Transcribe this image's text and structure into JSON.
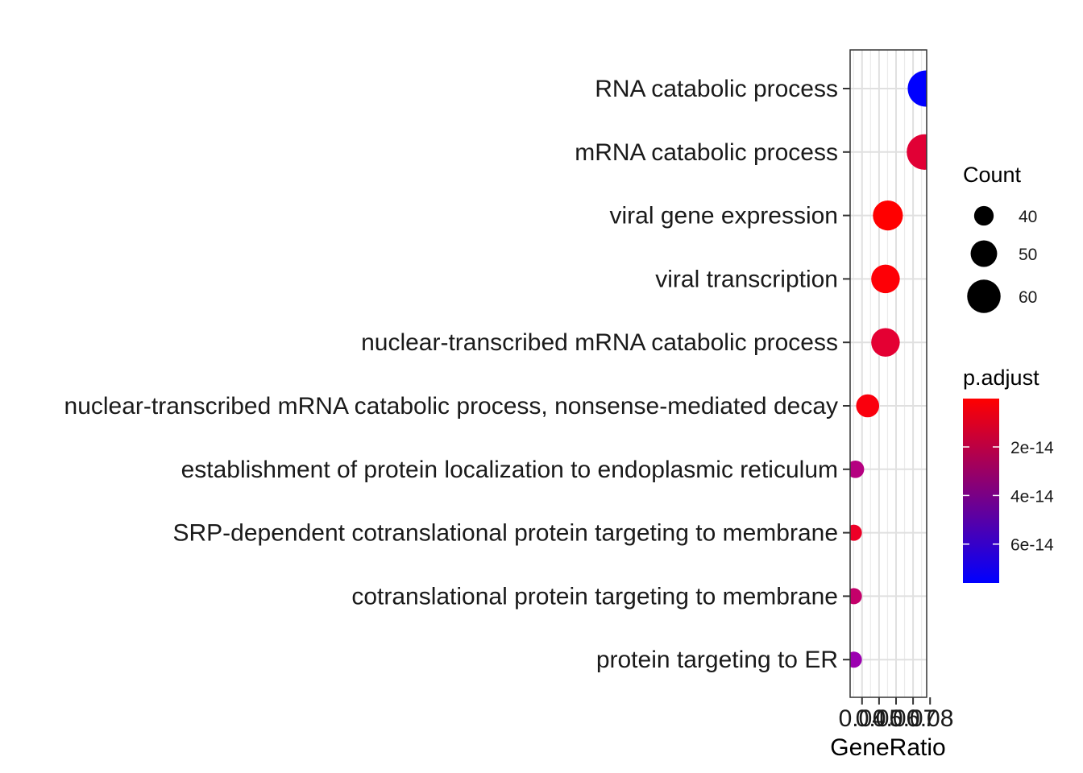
{
  "chart_data": {
    "type": "scatter",
    "xlabel": "GeneRatio",
    "ylabel": "",
    "xlim": [
      0.033,
      0.078
    ],
    "x_ticks": [
      0.04,
      0.05,
      0.06,
      0.07,
      0.08
    ],
    "x_tick_labels": [
      "0.04",
      "0.05",
      "0.06",
      "0.07",
      "0.08"
    ],
    "grid": true,
    "categories": [
      "RNA catabolic process",
      "mRNA catabolic process",
      "viral gene expression",
      "viral transcription",
      "nuclear-transcribed mRNA catabolic process",
      "nuclear-transcribed mRNA catabolic process, nonsense-mediated decay",
      "establishment of protein localization to endoplasmic reticulum",
      "SRP-dependent cotranslational protein targeting to membrane",
      "cotranslational protein targeting to membrane",
      "protein targeting to ER"
    ],
    "points": [
      {
        "term": "RNA catabolic process",
        "gene_ratio": 0.0775,
        "count": 64,
        "p_adjust": 7.3e-14,
        "color": "#0000FF"
      },
      {
        "term": "mRNA catabolic process",
        "gene_ratio": 0.0767,
        "count": 63,
        "p_adjust": 1.7e-14,
        "color": "#E10035"
      },
      {
        "term": "viral gene expression",
        "gene_ratio": 0.0552,
        "count": 55,
        "p_adjust": 2e-16,
        "color": "#FF0000"
      },
      {
        "term": "viral transcription",
        "gene_ratio": 0.0538,
        "count": 53,
        "p_adjust": 4e-16,
        "color": "#FE0006"
      },
      {
        "term": "nuclear-transcribed mRNA catabolic process",
        "gene_ratio": 0.0538,
        "count": 53,
        "p_adjust": 1.6e-14,
        "color": "#E40033"
      },
      {
        "term": "nuclear-transcribed mRNA catabolic process, nonsense-mediated decay",
        "gene_ratio": 0.0433,
        "count": 45,
        "p_adjust": 1.5e-15,
        "color": "#FA000D"
      },
      {
        "term": "establishment of protein localization to endoplasmic reticulum",
        "gene_ratio": 0.0361,
        "count": 37,
        "p_adjust": 3.9e-14,
        "color": "#B50080"
      },
      {
        "term": "SRP-dependent cotranslational protein targeting to membrane",
        "gene_ratio": 0.0352,
        "count": 35,
        "p_adjust": 1e-14,
        "color": "#ED0027"
      },
      {
        "term": "cotranslational protein targeting to membrane",
        "gene_ratio": 0.0352,
        "count": 35,
        "p_adjust": 3.5e-14,
        "color": "#C4006A"
      },
      {
        "term": "protein targeting to ER",
        "gene_ratio": 0.0352,
        "count": 35,
        "p_adjust": 4.8e-14,
        "color": "#9C00B0"
      }
    ],
    "legend_size": {
      "title": "Count",
      "entries": [
        {
          "label": "40",
          "value": 40
        },
        {
          "label": "50",
          "value": 50
        },
        {
          "label": "60",
          "value": 60
        }
      ]
    },
    "legend_color": {
      "title": "p.adjust",
      "low_color": "#FF0000",
      "high_color": "#0000FF",
      "range": [
        1e-16,
        7.6e-14
      ],
      "ticks": [
        {
          "label": "2e-14",
          "value": 2e-14
        },
        {
          "label": "4e-14",
          "value": 4e-14
        },
        {
          "label": "6e-14",
          "value": 6e-14
        }
      ]
    },
    "legend_placement": "right"
  }
}
